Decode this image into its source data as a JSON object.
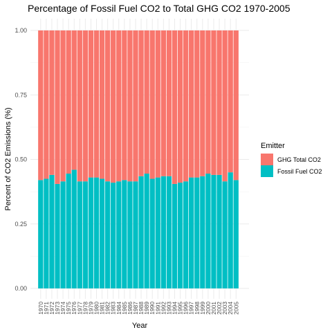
{
  "chart_data": {
    "type": "bar",
    "stacked": true,
    "title": "Percentage of Fossil Fuel CO2 to Total GHG CO2 1970-2005",
    "xlabel": "Year",
    "ylabel": "Percent of CO2 Emissions (%)",
    "ylim": [
      0,
      1
    ],
    "yticks": [
      "0.00",
      "0.25",
      "0.50",
      "0.75",
      "1.00"
    ],
    "grid": true,
    "legend": {
      "title": "Emitter",
      "placement": "right"
    },
    "categories": [
      "1970",
      "1971",
      "1972",
      "1973",
      "1974",
      "1975",
      "1976",
      "1977",
      "1978",
      "1979",
      "1980",
      "1981",
      "1982",
      "1983",
      "1984",
      "1985",
      "1986",
      "1987",
      "1988",
      "1989",
      "1990",
      "1991",
      "1992",
      "1993",
      "1994",
      "1995",
      "1996",
      "1997",
      "1998",
      "1999",
      "2000",
      "2001",
      "2002",
      "2003",
      "2004",
      "2005"
    ],
    "series": [
      {
        "name": "GHG Total CO2",
        "color": "#F8766D",
        "values": [
          0.58,
          0.575,
          0.56,
          0.595,
          0.585,
          0.555,
          0.54,
          0.585,
          0.585,
          0.57,
          0.57,
          0.575,
          0.585,
          0.59,
          0.585,
          0.58,
          0.585,
          0.585,
          0.565,
          0.555,
          0.575,
          0.57,
          0.565,
          0.565,
          0.595,
          0.59,
          0.585,
          0.57,
          0.57,
          0.565,
          0.555,
          0.56,
          0.56,
          0.585,
          0.55,
          0.58
        ]
      },
      {
        "name": "Fossil Fuel CO2",
        "color": "#00BFC4",
        "values": [
          0.42,
          0.425,
          0.44,
          0.405,
          0.415,
          0.445,
          0.46,
          0.415,
          0.415,
          0.43,
          0.43,
          0.425,
          0.415,
          0.41,
          0.415,
          0.42,
          0.415,
          0.415,
          0.435,
          0.445,
          0.425,
          0.43,
          0.435,
          0.435,
          0.405,
          0.41,
          0.415,
          0.43,
          0.43,
          0.435,
          0.445,
          0.44,
          0.44,
          0.415,
          0.45,
          0.42
        ]
      }
    ]
  }
}
